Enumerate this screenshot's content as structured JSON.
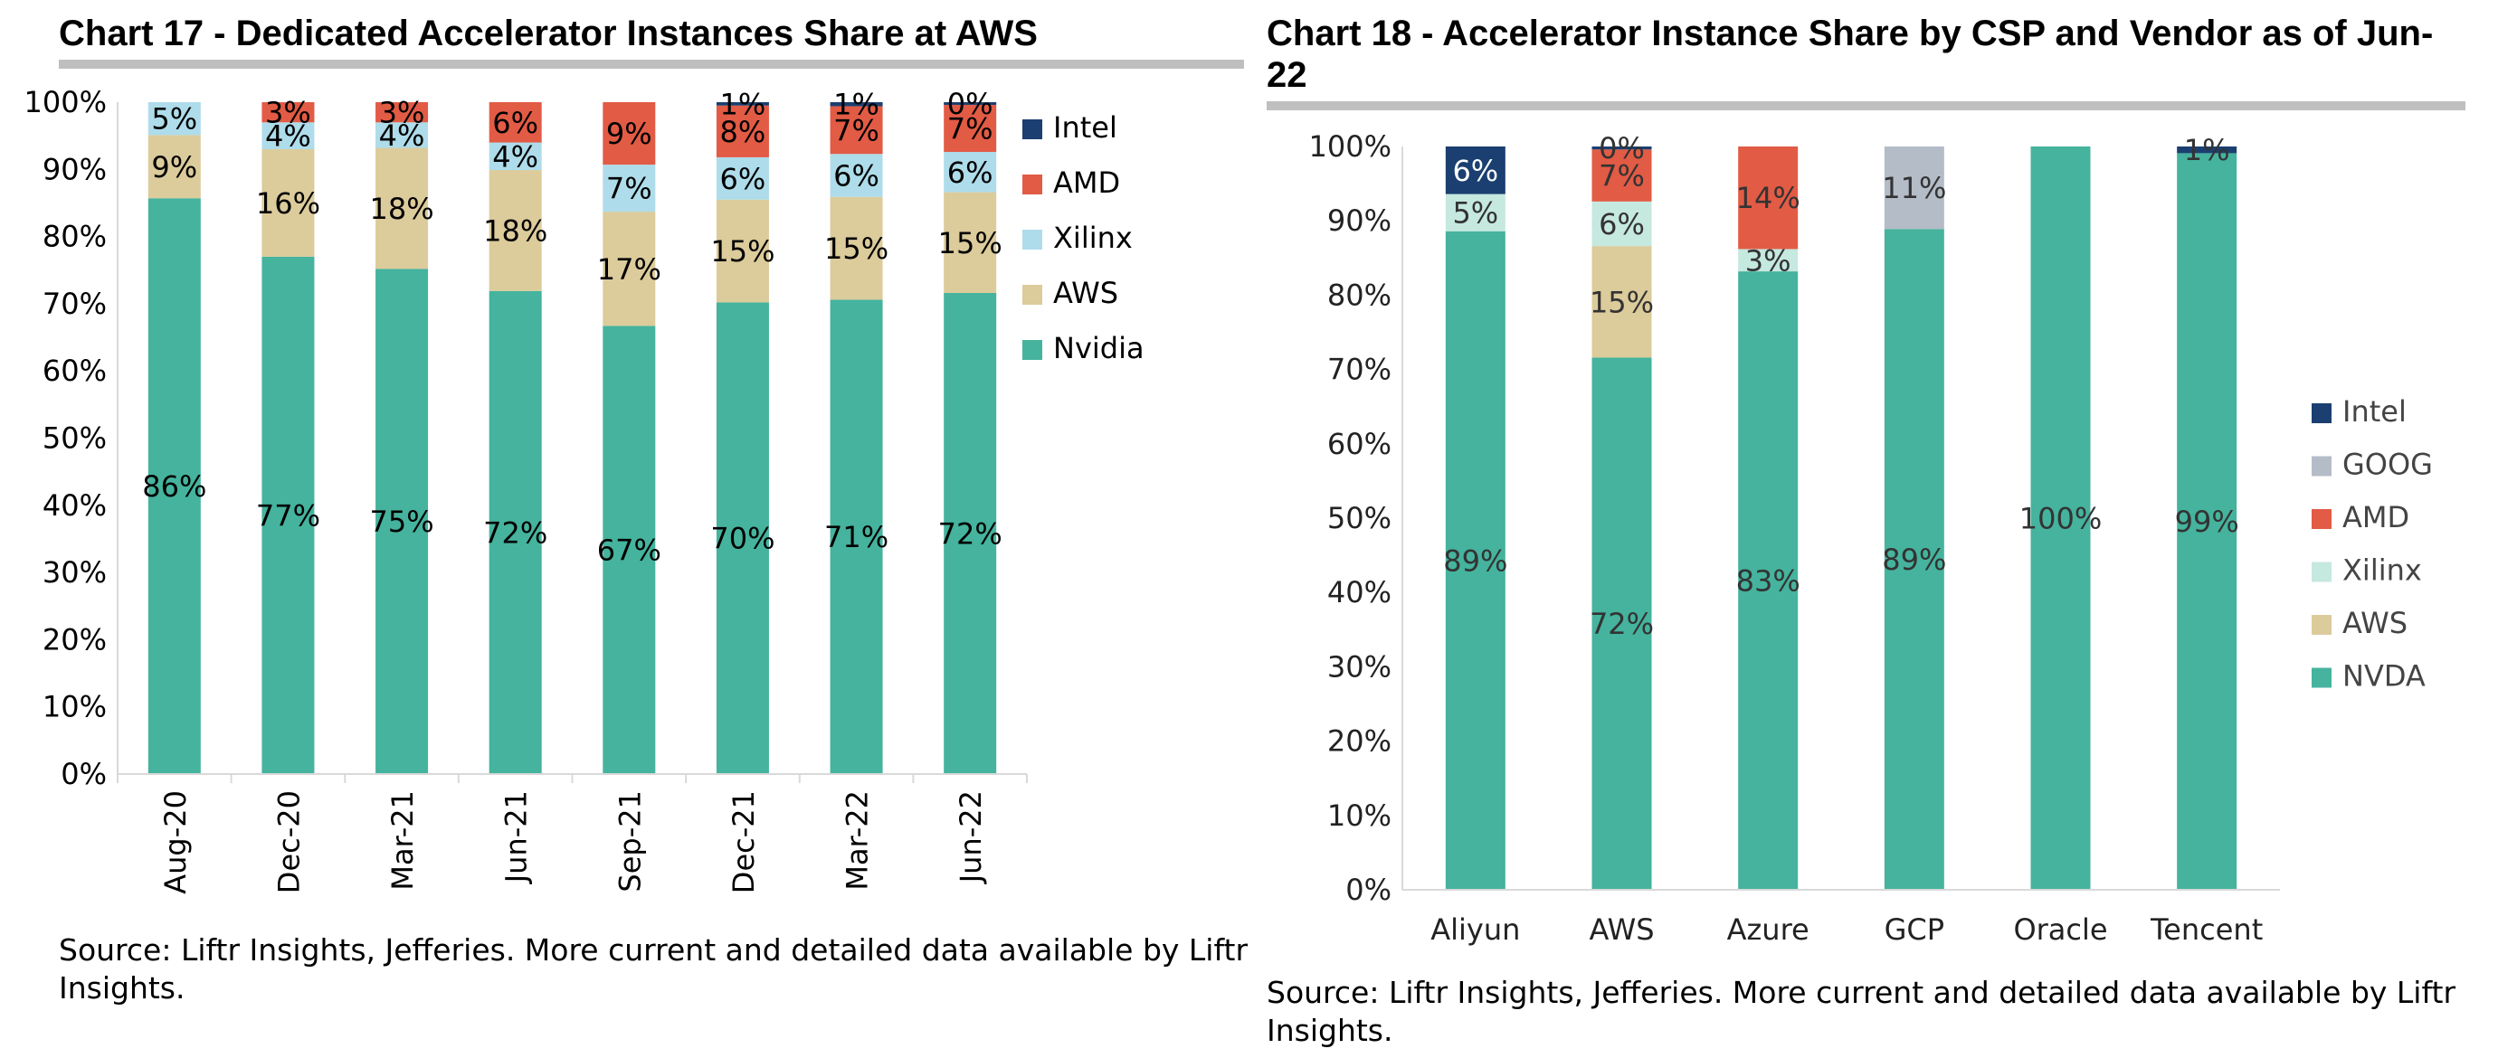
{
  "charts": [
    {
      "title": "Chart 17 - Dedicated Accelerator Instances Share at AWS",
      "source": "Source: Liftr Insights, Jefferies. More current and detailed data available by Liftr Insights."
    },
    {
      "title": "Chart 18 - Accelerator Instance Share by CSP and Vendor as of Jun-22",
      "source": "Source: Liftr Insights, Jefferies. More current and detailed data available by Liftr Insights."
    }
  ],
  "chart_data": [
    {
      "type": "bar",
      "stacked": true,
      "title": "Chart 17 - Dedicated Accelerator Instances Share at AWS",
      "xlabel": "",
      "ylabel": "",
      "ylim": [
        0,
        100
      ],
      "y_ticks": [
        "0%",
        "10%",
        "20%",
        "30%",
        "40%",
        "50%",
        "60%",
        "70%",
        "80%",
        "90%",
        "100%"
      ],
      "categories": [
        "Aug-20",
        "Dec-20",
        "Mar-21",
        "Jun-21",
        "Sep-21",
        "Dec-21",
        "Mar-22",
        "Jun-22"
      ],
      "legend_position": "right",
      "grid": false,
      "series": [
        {
          "name": "Nvidia",
          "color": "#45b39d",
          "values": [
            85.7,
            77,
            75.2,
            71.9,
            66.7,
            70.2,
            70.6,
            71.6
          ],
          "labels": [
            "86%",
            "77%",
            "75%",
            "72%",
            "67%",
            "70%",
            "71%",
            "72%"
          ]
        },
        {
          "name": "AWS",
          "color": "#dccb9b",
          "values": [
            9.4,
            16,
            18,
            18,
            17,
            15.3,
            15.3,
            15
          ],
          "labels": [
            "9%",
            "16%",
            "18%",
            "18%",
            "17%",
            "15%",
            "15%",
            "15%"
          ]
        },
        {
          "name": "Xilinx",
          "color": "#aedcea",
          "values": [
            4.9,
            4,
            3.8,
            4.1,
            7,
            6.3,
            6.4,
            6
          ],
          "labels": [
            "5%",
            "4%",
            "4%",
            "4%",
            "7%",
            "6%",
            "6%",
            "6%"
          ]
        },
        {
          "name": "AMD",
          "color": "#e25b45",
          "values": [
            0,
            3,
            3,
            6,
            9.3,
            7.7,
            7.1,
            7
          ],
          "labels": [
            "",
            "3%",
            "3%",
            "6%",
            "9%",
            "8%",
            "7%",
            "7%"
          ]
        },
        {
          "name": "Intel",
          "color": "#1a3f70",
          "values": [
            0,
            0,
            0,
            0,
            0,
            0.5,
            0.6,
            0.4
          ],
          "labels": [
            "",
            "",
            "",
            "",
            "",
            "1%",
            "1%",
            "0%"
          ]
        }
      ]
    },
    {
      "type": "bar",
      "stacked": true,
      "title": "Chart 18 - Accelerator Instance Share by CSP and Vendor as of Jun-22",
      "xlabel": "",
      "ylabel": "",
      "ylim": [
        0,
        100
      ],
      "y_ticks": [
        "0%",
        "10%",
        "20%",
        "30%",
        "40%",
        "50%",
        "60%",
        "70%",
        "80%",
        "90%",
        "100%"
      ],
      "categories": [
        "Aliyun",
        "AWS",
        "Azure",
        "GCP",
        "Oracle",
        "Tencent"
      ],
      "legend_position": "right",
      "grid": false,
      "series": [
        {
          "name": "NVDA",
          "color": "#45b39d",
          "values": [
            88.6,
            71.6,
            83.2,
            88.9,
            100,
            99.1
          ],
          "labels": [
            "89%",
            "72%",
            "83%",
            "89%",
            "100%",
            "99%"
          ]
        },
        {
          "name": "AWS",
          "color": "#dccb9b",
          "values": [
            0,
            15,
            0,
            0,
            0,
            0
          ],
          "labels": [
            "",
            "15%",
            "",
            "",
            "",
            ""
          ]
        },
        {
          "name": "Xilinx",
          "color": "#c5e8df",
          "values": [
            5,
            6,
            3,
            0,
            0,
            0
          ],
          "labels": [
            "5%",
            "6%",
            "3%",
            "",
            "",
            ""
          ]
        },
        {
          "name": "AMD",
          "color": "#e25b45",
          "values": [
            0,
            7,
            13.8,
            0,
            0,
            0
          ],
          "labels": [
            "",
            "7%",
            "14%",
            "",
            "",
            ""
          ]
        },
        {
          "name": "GOOG",
          "color": "#b4bcc8",
          "values": [
            0,
            0,
            0,
            11.1,
            0,
            0
          ],
          "labels": [
            "",
            "",
            "",
            "11%",
            "",
            ""
          ]
        },
        {
          "name": "Intel",
          "color": "#1a3f70",
          "values": [
            6.4,
            0.4,
            0,
            0,
            0,
            0.9
          ],
          "labels": [
            "6%",
            "0%",
            "",
            "",
            "",
            "1%"
          ]
        }
      ]
    }
  ]
}
